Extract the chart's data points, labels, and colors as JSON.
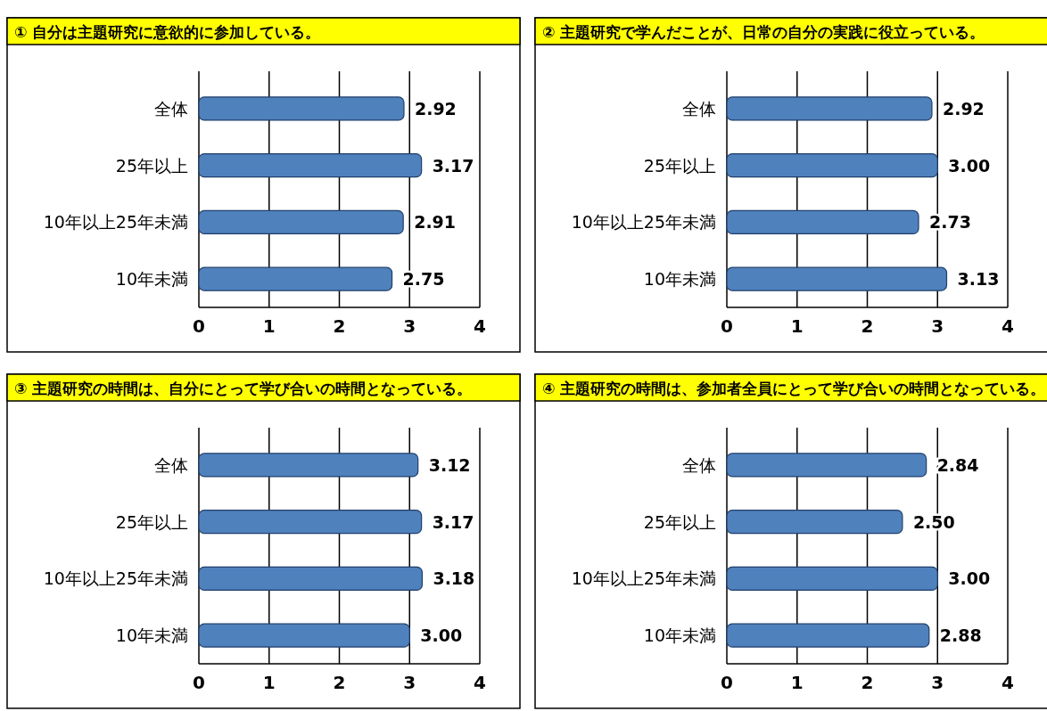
{
  "chart_data": [
    {
      "type": "bar",
      "orientation": "horizontal",
      "title": "① 自分は主題研究に意欲的に参加している。",
      "categories": [
        "全体",
        "25年以上",
        "10年以上25年未満",
        "10年未満"
      ],
      "values": [
        2.92,
        3.17,
        2.91,
        2.75
      ],
      "value_labels": [
        "2.92",
        "3.17",
        "2.91",
        "2.75"
      ],
      "color": "#4f81bd",
      "xlim": [
        0,
        4
      ],
      "xticks": [
        0,
        1,
        2,
        3,
        4
      ],
      "grid": "x"
    },
    {
      "type": "bar",
      "orientation": "horizontal",
      "title": "② 主題研究で学んだことが、日常の自分の実践に役立っている。",
      "categories": [
        "全体",
        "25年以上",
        "10年以上25年未満",
        "10年未満"
      ],
      "values": [
        2.92,
        3.0,
        2.73,
        3.13
      ],
      "value_labels": [
        "2.92",
        "3.00",
        "2.73",
        "3.13"
      ],
      "color": "#4f81bd",
      "xlim": [
        0,
        4
      ],
      "xticks": [
        0,
        1,
        2,
        3,
        4
      ],
      "grid": "x"
    },
    {
      "type": "bar",
      "orientation": "horizontal",
      "title": "③ 主題研究の時間は、自分にとって学び合いの時間となっている。",
      "categories": [
        "全体",
        "25年以上",
        "10年以上25年未満",
        "10年未満"
      ],
      "values": [
        3.12,
        3.17,
        3.18,
        3.0
      ],
      "value_labels": [
        "3.12",
        "3.17",
        "3.18",
        "3.00"
      ],
      "color": "#4f81bd",
      "xlim": [
        0,
        4
      ],
      "xticks": [
        0,
        1,
        2,
        3,
        4
      ],
      "grid": "x"
    },
    {
      "type": "bar",
      "orientation": "horizontal",
      "title": "④ 主題研究の時間は、参加者全員にとって学び合いの時間となっている。",
      "categories": [
        "全体",
        "25年以上",
        "10年以上25年未満",
        "10年未満"
      ],
      "values": [
        2.84,
        2.5,
        3.0,
        2.88
      ],
      "value_labels": [
        "2.84",
        "2.50",
        "3.00",
        "2.88"
      ],
      "color": "#4f81bd",
      "xlim": [
        0,
        4
      ],
      "xticks": [
        0,
        1,
        2,
        3,
        4
      ],
      "grid": "x"
    }
  ]
}
